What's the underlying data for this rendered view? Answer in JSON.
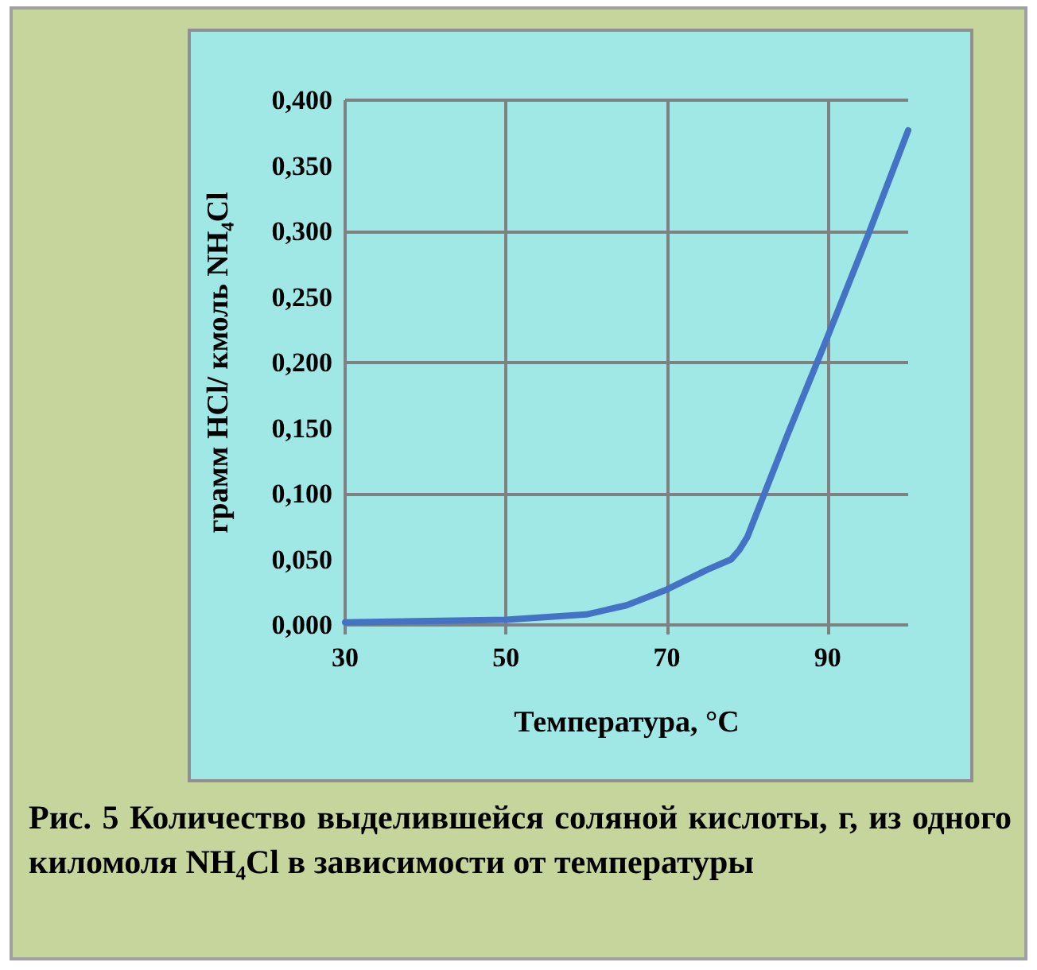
{
  "chart_data": {
    "type": "line",
    "xlabel": "Температура, °C",
    "ylabel": "грамм HCl/ кмоль NH₄Cl",
    "annotations": [
      "Рис. 5 Количество выделившейся соляной кислоты, г, из одного киломоля NH₄Cl в зависимости от температуры"
    ],
    "x": [
      30,
      50,
      60,
      65,
      70,
      75,
      78,
      79,
      80,
      85,
      90,
      95,
      100
    ],
    "series": [
      {
        "color": "#4472c4",
        "values": [
          0.002,
          0.004,
          0.008,
          0.015,
          0.027,
          0.042,
          0.05,
          0.057,
          0.067,
          0.145,
          0.22,
          0.297,
          0.377
        ]
      }
    ],
    "xlim": [
      30,
      100
    ],
    "xticks": [
      30,
      50,
      70,
      90
    ],
    "ylim": [
      0,
      0.4
    ],
    "yticks": [
      {
        "value": 0,
        "label": "0,000"
      },
      {
        "value": 0.05,
        "label": "0,050"
      },
      {
        "value": 0.1,
        "label": "0,100"
      },
      {
        "value": 0.15,
        "label": "0,150"
      },
      {
        "value": 0.2,
        "label": "0,200"
      },
      {
        "value": 0.25,
        "label": "0,250"
      },
      {
        "value": 0.3,
        "label": "0,300"
      },
      {
        "value": 0.35,
        "label": "0,350"
      },
      {
        "value": 0.4,
        "label": "0,400"
      }
    ],
    "grid": true,
    "marker": "none",
    "line_style": "solid"
  }
}
